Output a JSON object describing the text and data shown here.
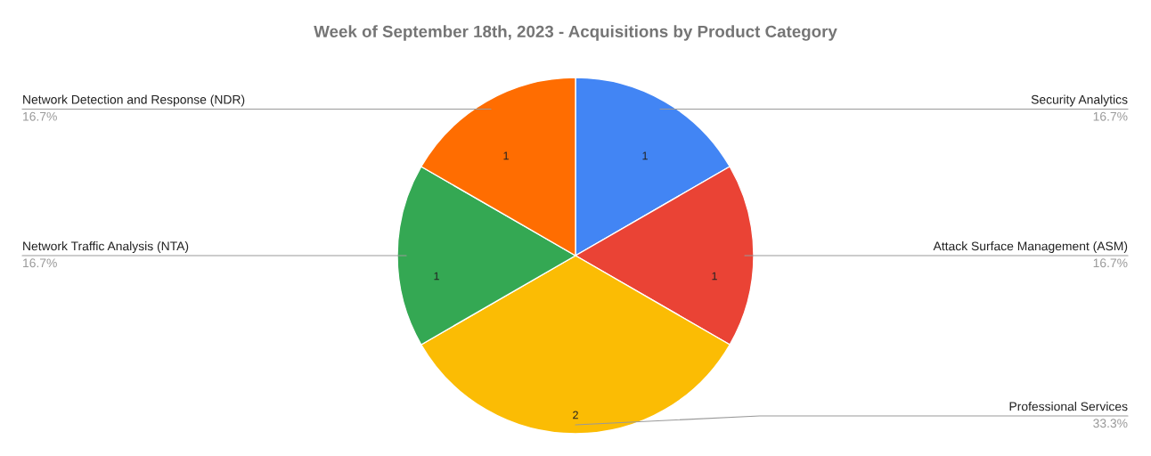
{
  "chart_data": {
    "type": "pie",
    "title": "Week of September 18th, 2023 - Acquisitions by Product Category",
    "categories": [
      "Security Analytics",
      "Attack Surface Management (ASM)",
      "Professional Services",
      "Network Traffic Analysis (NTA)",
      "Network Detection and Response (NDR)"
    ],
    "values": [
      1,
      1,
      2,
      1,
      1
    ],
    "colors": [
      "#4285f4",
      "#ea4335",
      "#fbbc04",
      "#34a853",
      "#ff6d01"
    ],
    "value_labels": [
      "1",
      "1",
      "2",
      "1",
      "1"
    ],
    "annotations": [
      "16.7%",
      "16.7%",
      "33.3%",
      "16.7%",
      "16.7%"
    ],
    "legend": false
  }
}
